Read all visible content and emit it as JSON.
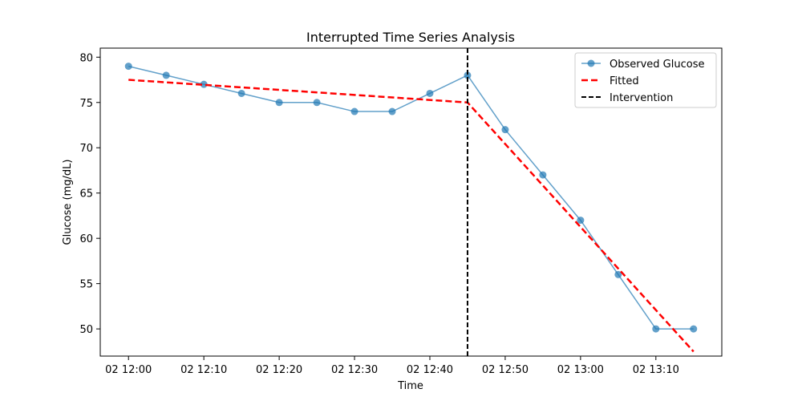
{
  "chart_data": {
    "type": "line",
    "title": "Interrupted Time Series Analysis",
    "xlabel": "Time",
    "ylabel": "Glucose (mg/dL)",
    "x_ticks": [
      "02 12:00",
      "02 12:10",
      "02 12:20",
      "02 12:30",
      "02 12:40",
      "02 12:50",
      "02 13:00",
      "02 13:10"
    ],
    "y_ticks": [
      50,
      55,
      60,
      65,
      70,
      75,
      80
    ],
    "xlim": [
      "12:00",
      "13:15"
    ],
    "ylim": [
      47,
      81
    ],
    "grid": false,
    "legend_position": "top-right",
    "series": [
      {
        "name": "Observed Glucose",
        "style": "line-markers",
        "color": "#1f77b4",
        "x": [
          "12:00",
          "12:05",
          "12:10",
          "12:15",
          "12:20",
          "12:25",
          "12:30",
          "12:35",
          "12:40",
          "12:45",
          "12:50",
          "12:55",
          "13:00",
          "13:05",
          "13:10",
          "13:15"
        ],
        "y": [
          79,
          78,
          77,
          76,
          75,
          75,
          74,
          74,
          76,
          78,
          72,
          67,
          62,
          56,
          50,
          50
        ]
      },
      {
        "name": "Fitted",
        "style": "dashed",
        "color": "#ff0000",
        "x": [
          "12:00",
          "12:45",
          "13:15"
        ],
        "y": [
          77.5,
          75.0,
          47.5
        ]
      }
    ],
    "reference_lines": [
      {
        "name": "Intervention",
        "style": "dashed-vertical",
        "color": "#000000",
        "x": "12:45"
      }
    ]
  }
}
